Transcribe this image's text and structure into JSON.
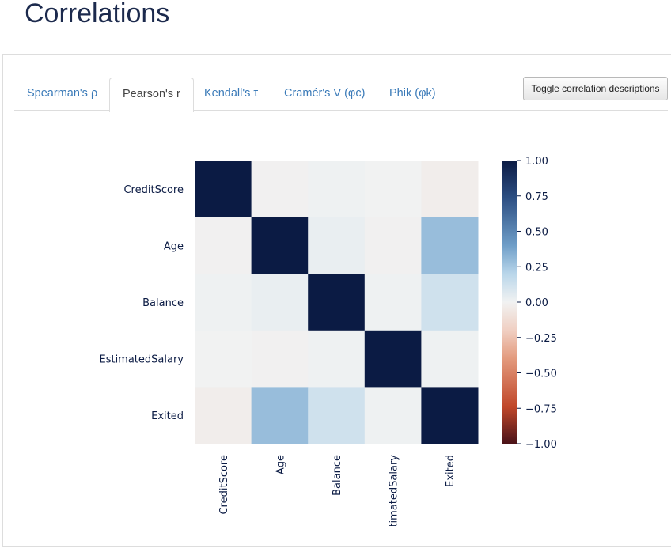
{
  "page": {
    "title": "Correlations"
  },
  "tabs": [
    {
      "label": "Spearman's ρ",
      "active": false
    },
    {
      "label": "Pearson's r",
      "active": true
    },
    {
      "label": "Kendall's τ",
      "active": false
    },
    {
      "label": "Cramér's V (φc)",
      "active": false
    },
    {
      "label": "Phik (φk)",
      "active": false
    }
  ],
  "toggle_button": {
    "label": "Toggle correlation descriptions"
  },
  "colors": {
    "positive_max": "#0b1b44",
    "zero": "#f1f2f2",
    "negative_max": "#c0472a",
    "tab_link": "#3a7ab8",
    "title": "#1c2a4d"
  },
  "chart_data": {
    "type": "heatmap",
    "variables": [
      "CreditScore",
      "Age",
      "Balance",
      "EstimatedSalary",
      "Exited"
    ],
    "matrix": [
      [
        1.0,
        -0.01,
        0.01,
        0.0,
        -0.03
      ],
      [
        -0.01,
        1.0,
        0.03,
        -0.01,
        0.29
      ],
      [
        0.01,
        0.03,
        1.0,
        0.01,
        0.12
      ],
      [
        0.0,
        -0.01,
        0.01,
        1.0,
        0.01
      ],
      [
        -0.03,
        0.29,
        0.12,
        0.01,
        1.0
      ]
    ],
    "colorbar": {
      "range": [
        -1.0,
        1.0
      ],
      "ticks": [
        "1.00",
        "0.75",
        "0.50",
        "0.25",
        "0.00",
        "−0.25",
        "−0.50",
        "−0.75",
        "−1.00"
      ]
    }
  }
}
